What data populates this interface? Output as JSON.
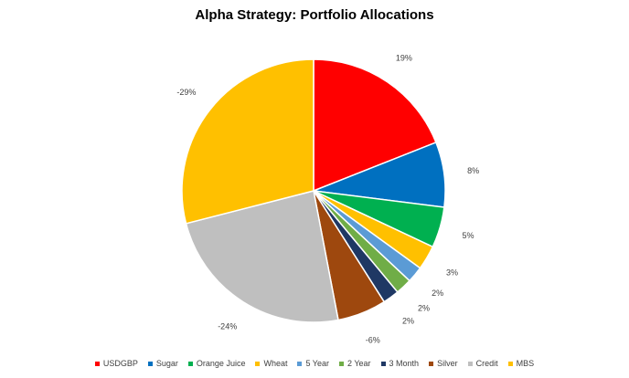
{
  "chart_data": {
    "type": "pie",
    "title": "Alpha Strategy: Portfolio Allocations",
    "legend_position": "bottom",
    "slices": [
      {
        "label": "USDGBP",
        "value": 19,
        "display": "19%",
        "color": "#ff0000"
      },
      {
        "label": "Sugar",
        "value": 8,
        "display": "8%",
        "color": "#0070c0"
      },
      {
        "label": "Orange Juice",
        "value": 5,
        "display": "5%",
        "color": "#00b050"
      },
      {
        "label": "Wheat",
        "value": 3,
        "display": "3%",
        "color": "#ffc000"
      },
      {
        "label": "5 Year",
        "value": 2,
        "display": "2%",
        "color": "#5b9bd5"
      },
      {
        "label": "2 Year",
        "value": 2,
        "display": "2%",
        "color": "#70ad47"
      },
      {
        "label": "3 Month",
        "value": 2,
        "display": "2%",
        "color": "#1f3864"
      },
      {
        "label": "Silver",
        "value": -6,
        "display": "-6%",
        "color": "#9e480e"
      },
      {
        "label": "Credit",
        "value": -24,
        "display": "-24%",
        "color": "#bfbfbf"
      },
      {
        "label": "MBS",
        "value": -29,
        "display": "-29%",
        "color": "#ffc000"
      }
    ]
  }
}
